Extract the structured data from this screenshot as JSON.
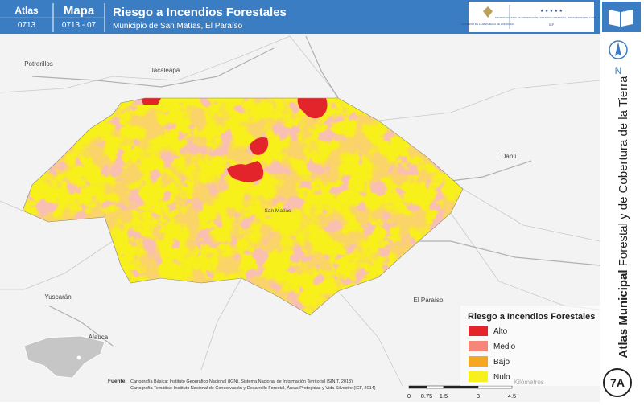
{
  "header": {
    "atlas_label": "Atlas",
    "atlas_code": "0713",
    "map_label": "Mapa",
    "map_code": "0713 - 07",
    "title": "Riesgo a Incendios Forestales",
    "subtitle": "Municipio de San Matías, El Paraíso"
  },
  "logos": {
    "government": "GOBIERNO DE LA REPÚBLICA DE HONDURAS",
    "institute": "INSTITUTO NACIONAL DE CONSERVACIÓN Y DESARROLLO FORESTAL, ÁREAS PROTEGIDAS Y VIDA SILVESTRE",
    "institute_short": "ICF"
  },
  "sidebar": {
    "title_bold": "Atlas Municipal",
    "title_rest": "Forestal y de Cobertura de la Tierra",
    "north": "N",
    "page": "7A"
  },
  "places": [
    {
      "label": "Potrerillos"
    },
    {
      "label": "Jacaleapa"
    },
    {
      "label": "Danlí"
    },
    {
      "label": "San Matías"
    },
    {
      "label": "Yuscarán"
    },
    {
      "label": "El Paraíso"
    },
    {
      "label": "Alauca"
    }
  ],
  "legend": {
    "title": "Riesgo a Incendios Forestales",
    "items": [
      {
        "label": "Alto",
        "color": "#e3242b"
      },
      {
        "label": "Medio",
        "color": "#f4877a"
      },
      {
        "label": "Bajo",
        "color": "#f5a623"
      },
      {
        "label": "Nulo",
        "color": "#f7f01a"
      }
    ]
  },
  "scale": {
    "ticks": [
      "0",
      "0.75",
      "1.5",
      "3",
      "4.5"
    ],
    "unit": "Kilómetros"
  },
  "source": {
    "label": "Fuente:",
    "lines": [
      "Cartografía Básica: Instituto Geográfico Nacional (IGN), Sistema Nacional de Información Territorial (SINIT, 2013)",
      "Cartografía Temática: Instituto Nacional de Conservación y Desarrollo Forestal, Áreas Protegidas y Vida Silvestre (ICF, 2014)"
    ]
  }
}
